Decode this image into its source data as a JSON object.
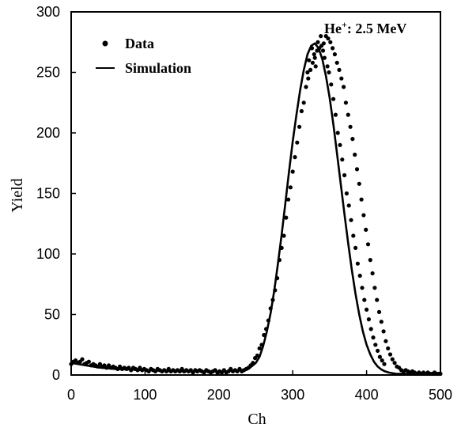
{
  "chart_data": {
    "type": "scatter",
    "xlabel": "Ch",
    "ylabel": "Yield",
    "xlim": [
      0,
      500
    ],
    "ylim": [
      0,
      300
    ],
    "xticks": [
      0,
      100,
      200,
      300,
      400,
      500
    ],
    "yticks": [
      0,
      50,
      100,
      150,
      200,
      250,
      300
    ],
    "x_tick_labels": [
      "0",
      "100",
      "200",
      "300",
      "400",
      "500"
    ],
    "y_tick_labels": [
      "0",
      "50",
      "100",
      "150",
      "200",
      "250",
      "300"
    ],
    "grid": false,
    "legend_position": "top-left",
    "annotation": {
      "base": "He",
      "superscript": "+",
      "rest": ": 2.5 MeV",
      "position": "top-right"
    },
    "series": [
      {
        "name": "Data",
        "kind": "points",
        "points": [
          [
            0,
            9
          ],
          [
            3,
            11
          ],
          [
            6,
            12
          ],
          [
            9,
            10
          ],
          [
            12,
            11
          ],
          [
            15,
            13
          ],
          [
            18,
            9
          ],
          [
            21,
            10
          ],
          [
            24,
            11
          ],
          [
            27,
            8
          ],
          [
            30,
            9
          ],
          [
            33,
            8
          ],
          [
            36,
            7
          ],
          [
            39,
            9
          ],
          [
            42,
            7
          ],
          [
            45,
            8
          ],
          [
            48,
            6
          ],
          [
            51,
            8
          ],
          [
            54,
            6
          ],
          [
            57,
            7
          ],
          [
            60,
            6
          ],
          [
            63,
            5
          ],
          [
            66,
            7
          ],
          [
            69,
            5
          ],
          [
            72,
            6
          ],
          [
            75,
            5
          ],
          [
            78,
            6
          ],
          [
            81,
            4
          ],
          [
            84,
            6
          ],
          [
            87,
            5
          ],
          [
            90,
            4
          ],
          [
            93,
            6
          ],
          [
            96,
            4
          ],
          [
            99,
            5
          ],
          [
            102,
            4
          ],
          [
            105,
            3
          ],
          [
            108,
            5
          ],
          [
            111,
            4
          ],
          [
            114,
            3
          ],
          [
            117,
            5
          ],
          [
            120,
            4
          ],
          [
            123,
            3
          ],
          [
            126,
            4
          ],
          [
            129,
            3
          ],
          [
            132,
            5
          ],
          [
            135,
            3
          ],
          [
            138,
            4
          ],
          [
            141,
            3
          ],
          [
            144,
            4
          ],
          [
            147,
            3
          ],
          [
            150,
            5
          ],
          [
            153,
            3
          ],
          [
            156,
            4
          ],
          [
            159,
            3
          ],
          [
            162,
            4
          ],
          [
            165,
            2
          ],
          [
            168,
            4
          ],
          [
            171,
            3
          ],
          [
            174,
            4
          ],
          [
            177,
            3
          ],
          [
            180,
            2
          ],
          [
            183,
            4
          ],
          [
            186,
            3
          ],
          [
            189,
            2
          ],
          [
            192,
            3
          ],
          [
            195,
            4
          ],
          [
            198,
            2
          ],
          [
            201,
            3
          ],
          [
            204,
            2
          ],
          [
            207,
            4
          ],
          [
            210,
            2
          ],
          [
            213,
            3
          ],
          [
            216,
            5
          ],
          [
            219,
            3
          ],
          [
            222,
            4
          ],
          [
            225,
            3
          ],
          [
            228,
            5
          ],
          [
            231,
            3
          ],
          [
            234,
            4
          ],
          [
            237,
            5
          ],
          [
            240,
            6
          ],
          [
            243,
            8
          ],
          [
            246,
            10
          ],
          [
            249,
            14
          ],
          [
            252,
            16
          ],
          [
            255,
            22
          ],
          [
            258,
            25
          ],
          [
            261,
            33
          ],
          [
            264,
            38
          ],
          [
            267,
            45
          ],
          [
            270,
            55
          ],
          [
            273,
            62
          ],
          [
            276,
            70
          ],
          [
            279,
            80
          ],
          [
            282,
            95
          ],
          [
            285,
            105
          ],
          [
            288,
            115
          ],
          [
            291,
            130
          ],
          [
            294,
            145
          ],
          [
            297,
            155
          ],
          [
            300,
            168
          ],
          [
            303,
            180
          ],
          [
            306,
            192
          ],
          [
            309,
            205
          ],
          [
            312,
            218
          ],
          [
            315,
            225
          ],
          [
            318,
            238
          ],
          [
            321,
            245
          ],
          [
            324,
            252
          ],
          [
            327,
            258
          ],
          [
            330,
            262
          ],
          [
            333,
            268
          ],
          [
            336,
            270
          ],
          [
            339,
            272
          ],
          [
            342,
            274
          ],
          [
            345,
            280
          ],
          [
            348,
            278
          ],
          [
            351,
            275
          ],
          [
            354,
            270
          ],
          [
            357,
            265
          ],
          [
            360,
            258
          ],
          [
            363,
            252
          ],
          [
            366,
            245
          ],
          [
            369,
            238
          ],
          [
            372,
            225
          ],
          [
            375,
            215
          ],
          [
            378,
            205
          ],
          [
            381,
            195
          ],
          [
            384,
            182
          ],
          [
            387,
            170
          ],
          [
            390,
            158
          ],
          [
            393,
            145
          ],
          [
            396,
            132
          ],
          [
            399,
            120
          ],
          [
            402,
            108
          ],
          [
            405,
            95
          ],
          [
            408,
            84
          ],
          [
            411,
            72
          ],
          [
            414,
            62
          ],
          [
            417,
            52
          ],
          [
            420,
            44
          ],
          [
            423,
            36
          ],
          [
            426,
            28
          ],
          [
            429,
            22
          ],
          [
            432,
            17
          ],
          [
            435,
            13
          ],
          [
            438,
            10
          ],
          [
            441,
            7
          ],
          [
            444,
            6
          ],
          [
            447,
            4
          ],
          [
            450,
            3
          ],
          [
            453,
            4
          ],
          [
            456,
            3
          ],
          [
            459,
            2
          ],
          [
            462,
            3
          ],
          [
            465,
            2
          ],
          [
            468,
            1
          ],
          [
            471,
            2
          ],
          [
            474,
            1
          ],
          [
            477,
            2
          ],
          [
            480,
            1
          ],
          [
            483,
            2
          ],
          [
            486,
            1
          ],
          [
            489,
            1
          ],
          [
            492,
            2
          ],
          [
            495,
            1
          ],
          [
            498,
            1
          ],
          [
            500,
            1
          ],
          [
            320,
            250
          ],
          [
            322,
            260
          ],
          [
            326,
            270
          ],
          [
            329,
            265
          ],
          [
            331,
            255
          ],
          [
            334,
            275
          ],
          [
            338,
            280
          ],
          [
            341,
            268
          ],
          [
            343,
            262
          ],
          [
            347,
            255
          ],
          [
            349,
            250
          ],
          [
            352,
            240
          ],
          [
            355,
            228
          ],
          [
            358,
            215
          ],
          [
            361,
            200
          ],
          [
            364,
            190
          ],
          [
            367,
            178
          ],
          [
            370,
            165
          ],
          [
            373,
            150
          ],
          [
            376,
            140
          ],
          [
            379,
            128
          ],
          [
            382,
            115
          ],
          [
            385,
            105
          ],
          [
            388,
            92
          ],
          [
            391,
            82
          ],
          [
            394,
            72
          ],
          [
            397,
            62
          ],
          [
            400,
            54
          ],
          [
            403,
            46
          ],
          [
            406,
            38
          ],
          [
            409,
            31
          ],
          [
            412,
            25
          ],
          [
            415,
            20
          ],
          [
            418,
            15
          ],
          [
            421,
            12
          ],
          [
            424,
            9
          ]
        ]
      },
      {
        "name": "Simulation",
        "kind": "line",
        "points": [
          [
            0,
            10
          ],
          [
            10,
            9
          ],
          [
            20,
            8
          ],
          [
            30,
            7
          ],
          [
            40,
            6
          ],
          [
            50,
            5.5
          ],
          [
            60,
            5
          ],
          [
            80,
            4.5
          ],
          [
            100,
            4
          ],
          [
            120,
            3.5
          ],
          [
            140,
            3
          ],
          [
            160,
            3
          ],
          [
            180,
            3
          ],
          [
            200,
            3
          ],
          [
            210,
            3
          ],
          [
            220,
            3.5
          ],
          [
            230,
            4
          ],
          [
            240,
            5
          ],
          [
            250,
            10
          ],
          [
            255,
            15
          ],
          [
            260,
            24
          ],
          [
            265,
            36
          ],
          [
            270,
            51
          ],
          [
            275,
            70
          ],
          [
            280,
            92
          ],
          [
            285,
            116
          ],
          [
            290,
            142
          ],
          [
            295,
            168
          ],
          [
            300,
            193
          ],
          [
            305,
            215
          ],
          [
            310,
            235
          ],
          [
            315,
            252
          ],
          [
            320,
            265
          ],
          [
            325,
            272
          ],
          [
            330,
            274
          ],
          [
            335,
            270
          ],
          [
            340,
            261
          ],
          [
            345,
            247
          ],
          [
            350,
            229
          ],
          [
            355,
            207
          ],
          [
            360,
            183
          ],
          [
            365,
            158
          ],
          [
            370,
            133
          ],
          [
            375,
            109
          ],
          [
            380,
            87
          ],
          [
            385,
            67
          ],
          [
            390,
            50
          ],
          [
            395,
            36
          ],
          [
            400,
            25
          ],
          [
            405,
            17
          ],
          [
            410,
            11
          ],
          [
            415,
            7
          ],
          [
            420,
            4.5
          ],
          [
            425,
            3
          ],
          [
            430,
            2
          ],
          [
            440,
            1
          ],
          [
            450,
            1
          ],
          [
            470,
            0.5
          ],
          [
            500,
            0.5
          ]
        ]
      }
    ]
  },
  "legend": {
    "items": [
      {
        "label": "Data",
        "marker": "dot"
      },
      {
        "label": "Simulation",
        "marker": "line"
      }
    ]
  }
}
